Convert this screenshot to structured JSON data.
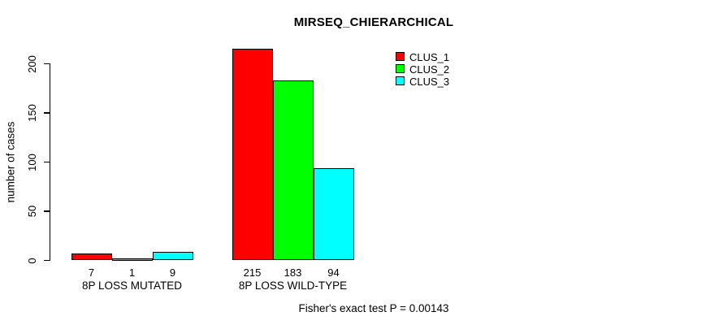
{
  "chart_data": {
    "type": "bar",
    "title": "MIRSEQ_CHIERARCHICAL",
    "ylabel": "number of cases",
    "xlabel": "",
    "groups": [
      "8P LOSS MUTATED",
      "8P LOSS WILD-TYPE"
    ],
    "series": [
      {
        "name": "CLUS_1",
        "color": "#FF0000",
        "values": [
          7,
          215
        ]
      },
      {
        "name": "CLUS_2",
        "color": "#00FF00",
        "values": [
          1,
          183
        ]
      },
      {
        "name": "CLUS_3",
        "color": "#00FFFF",
        "values": [
          9,
          94
        ]
      }
    ],
    "yticks": [
      0,
      50,
      100,
      150,
      200
    ],
    "ylim": [
      0,
      215
    ],
    "grid": false,
    "legend_position": "top-right",
    "value_labels": [
      [
        "7",
        "1",
        "9"
      ],
      [
        "215",
        "183",
        "94"
      ]
    ],
    "annotation": "Fisher's exact test P = 0.00143"
  },
  "colors": {
    "background": "#FFFFFF",
    "axis": "#000000",
    "bar_border": "#000000"
  }
}
